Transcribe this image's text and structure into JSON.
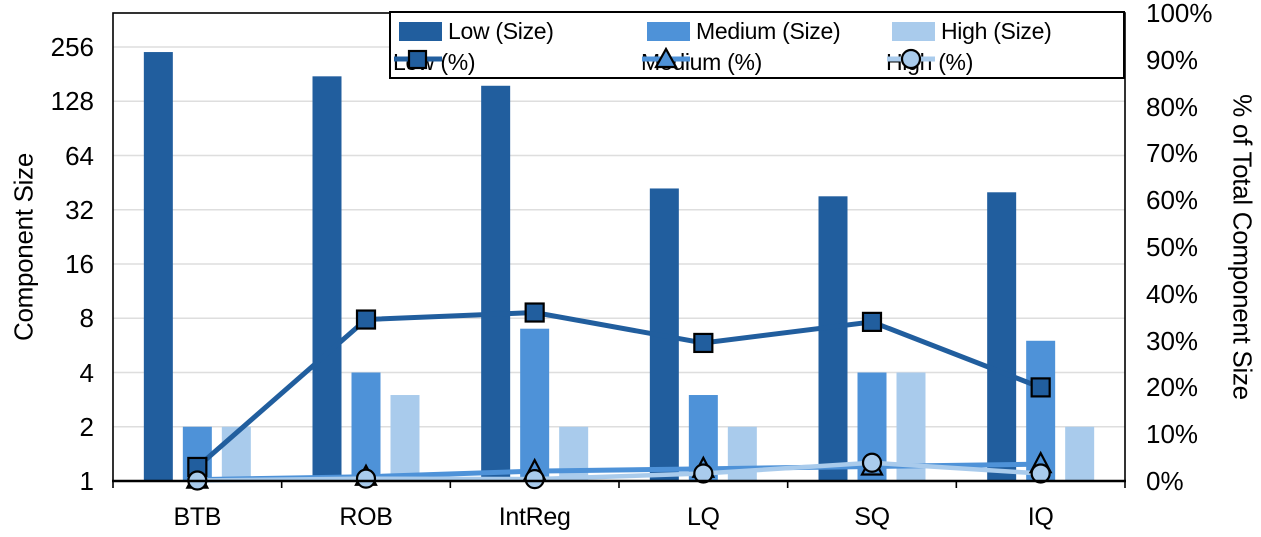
{
  "figure": {
    "background": "#FFFFFF"
  },
  "colors": {
    "low": "#215E9E",
    "medium": "#4E92D8",
    "high": "#A9CBEC",
    "gridline": "#DEDEDE",
    "axis": "#000000"
  },
  "axes": {
    "left": {
      "title": "Component Size"
    },
    "right": {
      "title": "% of Total Component Size"
    }
  },
  "legend": {
    "items": [
      {
        "label": "Low (Size)",
        "type": "swatch",
        "marker": "none",
        "color": "#215E9E"
      },
      {
        "label": "Medium (Size)",
        "type": "swatch",
        "marker": "none",
        "color": "#4E92D8"
      },
      {
        "label": "High (Size)",
        "type": "swatch",
        "marker": "none",
        "color": "#A9CBEC"
      },
      {
        "label": "Low (%)",
        "type": "line",
        "marker": "square",
        "color": "#215E9E"
      },
      {
        "label": "Medium (%)",
        "type": "line",
        "marker": "triangle",
        "color": "#4E92D8"
      },
      {
        "label": "High (%)",
        "type": "line",
        "marker": "circle",
        "color": "#A9CBEC"
      }
    ]
  },
  "chart_data": {
    "type": "bar+line",
    "categories": [
      "BTB",
      "ROB",
      "IntReg",
      "LQ",
      "SQ",
      "IQ"
    ],
    "bar_series": [
      {
        "key": "low-size",
        "name": "Low (Size)",
        "color": "#215E9E",
        "values": [
          240,
          176,
          156,
          42,
          38,
          40
        ]
      },
      {
        "key": "medium-size",
        "name": "Medium (Size)",
        "color": "#4E92D8",
        "values": [
          2,
          4,
          7,
          3,
          4,
          6
        ]
      },
      {
        "key": "high-size",
        "name": "High (Size)",
        "color": "#A9CBEC",
        "values": [
          2,
          3,
          2,
          2,
          4,
          2
        ]
      }
    ],
    "line_series": [
      {
        "key": "low-pct",
        "name": "Low (%)",
        "color": "#215E9E",
        "marker": "square",
        "values": [
          3,
          34.5,
          36,
          29.5,
          34,
          20
        ]
      },
      {
        "key": "medium-pct",
        "name": "Medium (%)",
        "color": "#4E92D8",
        "marker": "triangle",
        "values": [
          0.3,
          0.9,
          2.1,
          2.6,
          3.1,
          3.6
        ]
      },
      {
        "key": "high-pct",
        "name": "High (%)",
        "color": "#A9CBEC",
        "marker": "circle",
        "values": [
          0.1,
          0.5,
          0.4,
          1.6,
          3.9,
          1.6
        ]
      }
    ],
    "left_axis": {
      "scale": "log2",
      "min": 1,
      "max": 400,
      "ticks": [
        {
          "label": "256",
          "value": 256
        },
        {
          "label": "128",
          "value": 128
        },
        {
          "label": "64",
          "value": 64
        },
        {
          "label": "32",
          "value": 32
        },
        {
          "label": "16",
          "value": 16
        },
        {
          "label": "8",
          "value": 8
        },
        {
          "label": "4",
          "value": 4
        },
        {
          "label": "2",
          "value": 2
        },
        {
          "label": "1",
          "value": 1
        }
      ]
    },
    "right_axis": {
      "min": 0,
      "max": 100,
      "ticks": [
        {
          "label": "100%",
          "value": 100
        },
        {
          "label": "90%",
          "value": 90
        },
        {
          "label": "80%",
          "value": 80
        },
        {
          "label": "70%",
          "value": 70
        },
        {
          "label": "60%",
          "value": 60
        },
        {
          "label": "50%",
          "value": 50
        },
        {
          "label": "40%",
          "value": 40
        },
        {
          "label": "30%",
          "value": 30
        },
        {
          "label": "20%",
          "value": 20
        },
        {
          "label": "10%",
          "value": 10
        },
        {
          "label": "0%",
          "value": 0
        }
      ]
    },
    "grid": "horizontal-on-log2-ticks",
    "legend_position": "top-center-inside"
  }
}
